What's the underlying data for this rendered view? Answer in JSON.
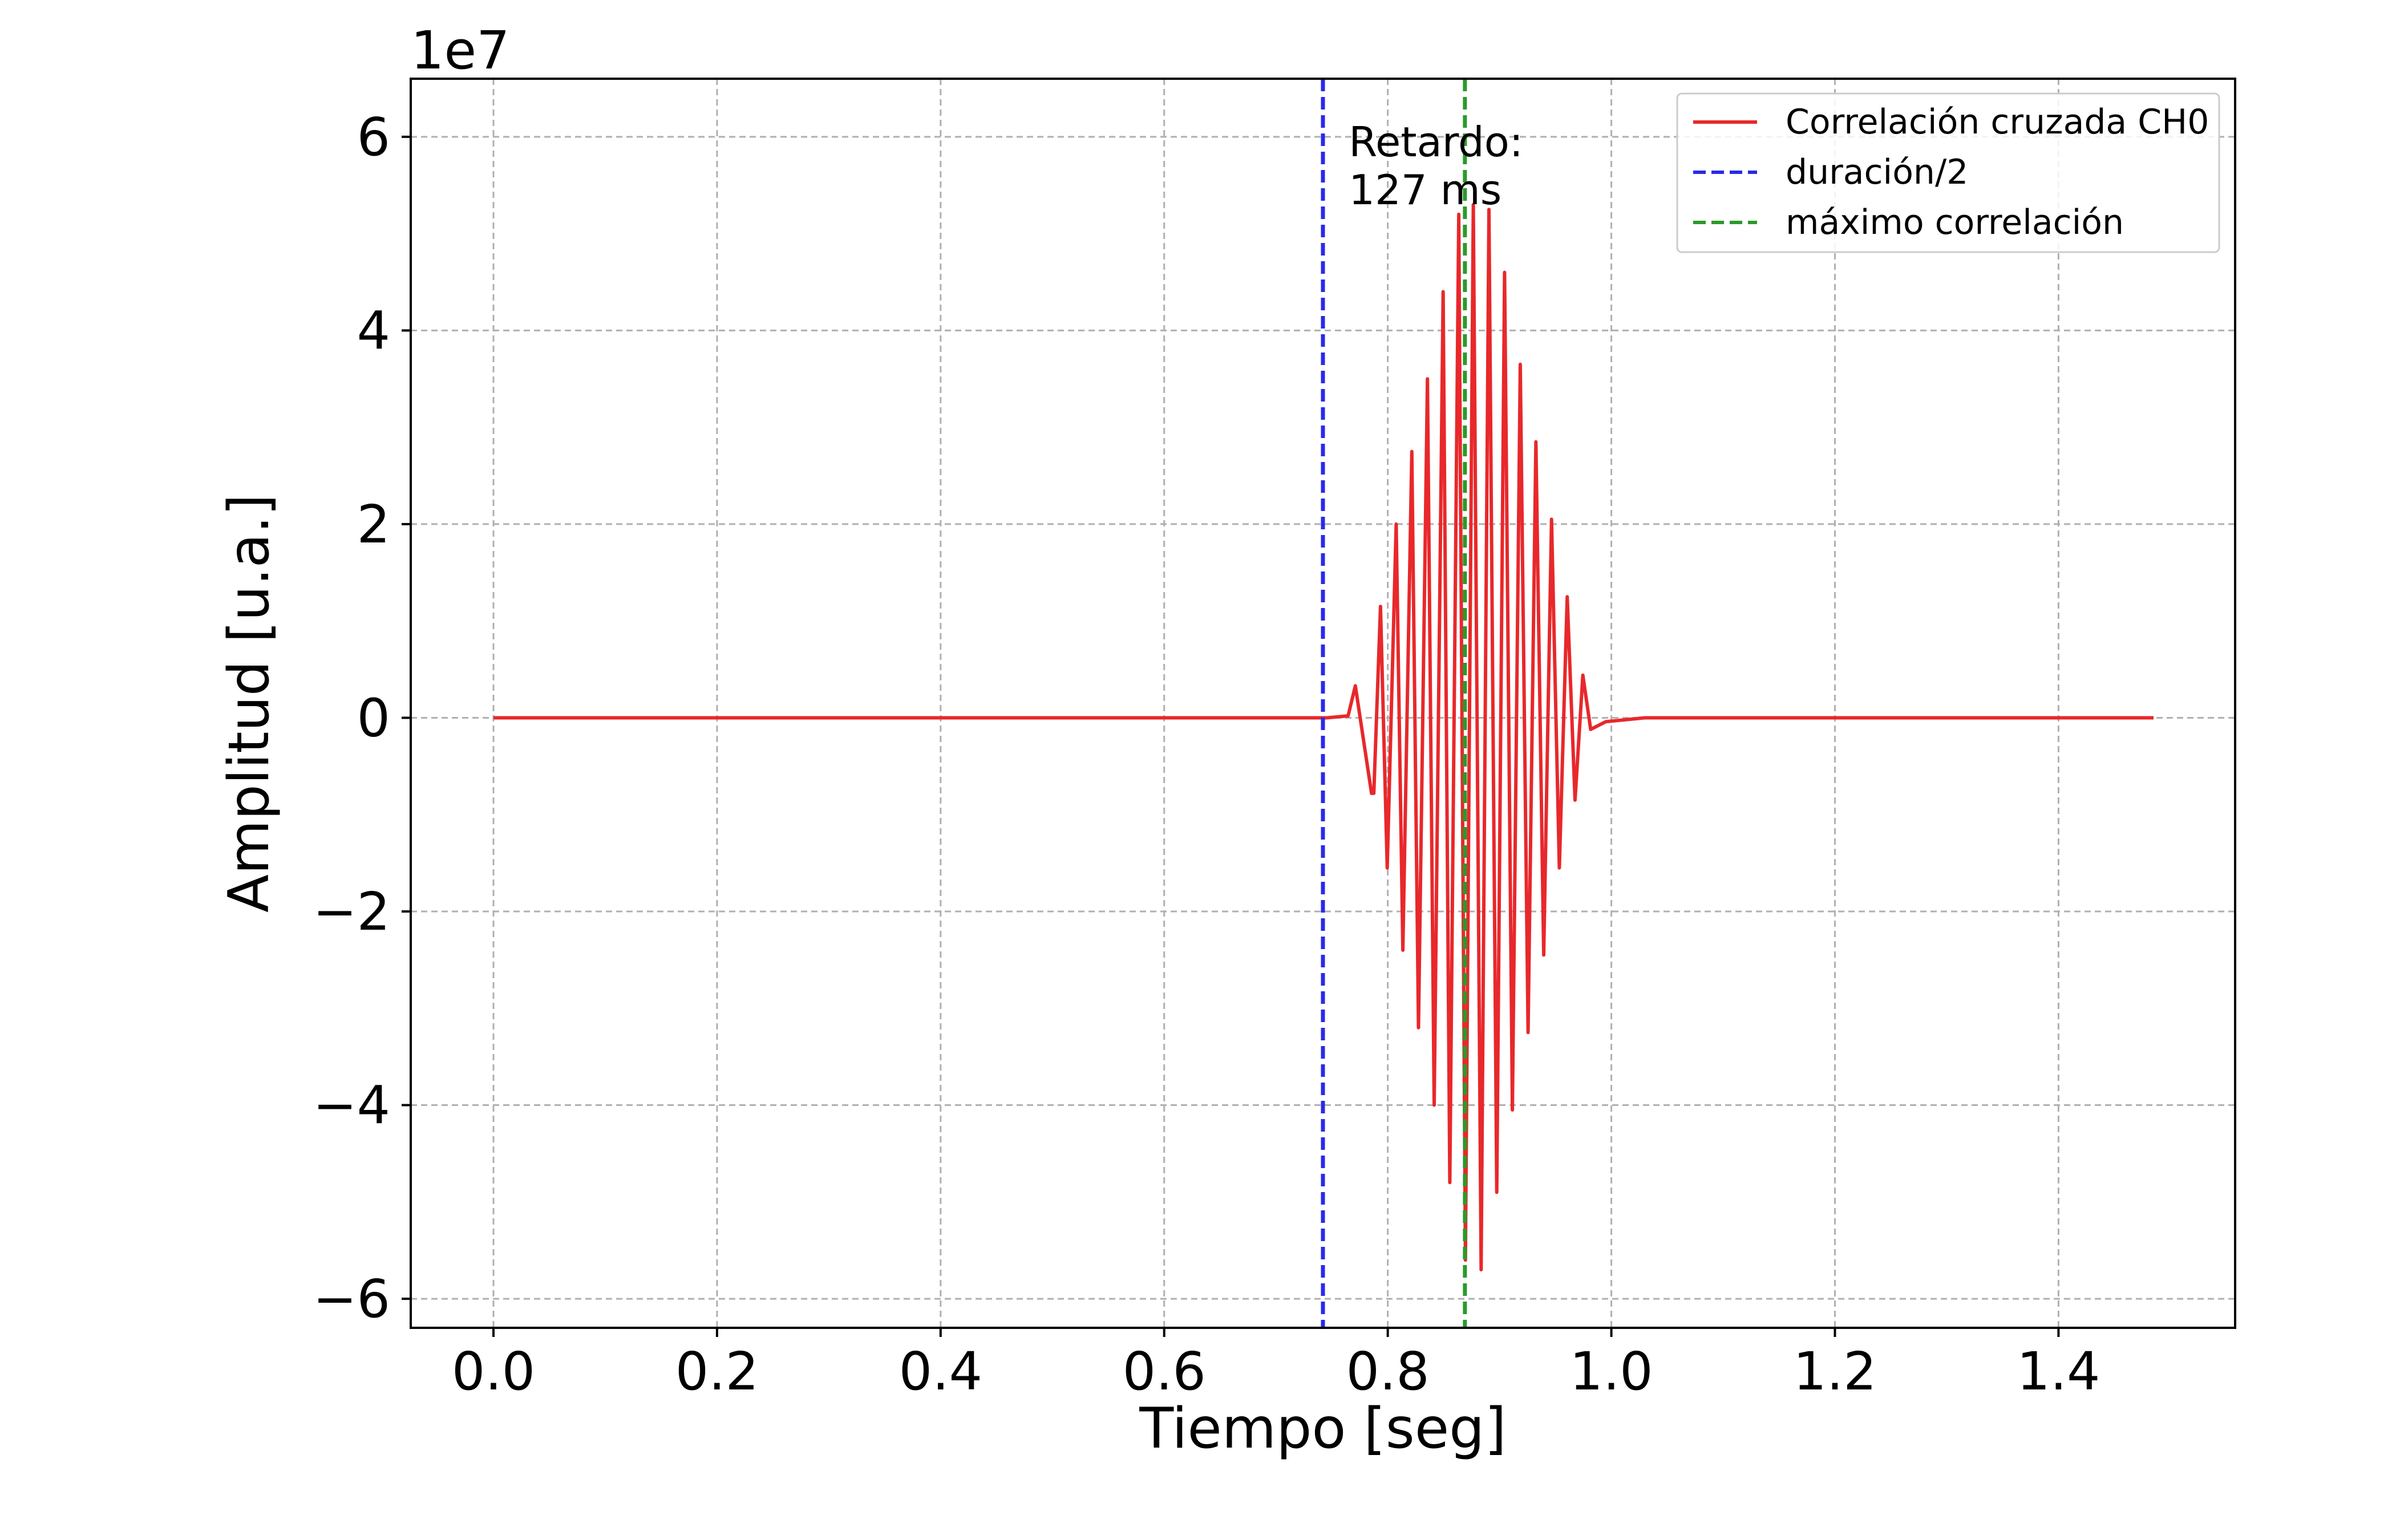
{
  "chart_data": {
    "type": "line",
    "xlabel": "Tiempo [seg]",
    "ylabel": "Amplitud [u.a.]",
    "y_offset_label": "1e7",
    "xlim": [
      -0.074,
      1.558
    ],
    "ylim": [
      -6.3,
      6.6
    ],
    "x_ticks": [
      0.0,
      0.2,
      0.4,
      0.6,
      0.8,
      1.0,
      1.2,
      1.4
    ],
    "x_tick_labels": [
      "0.0",
      "0.2",
      "0.4",
      "0.6",
      "0.8",
      "1.0",
      "1.2",
      "1.4"
    ],
    "y_ticks": [
      -6,
      -4,
      -2,
      0,
      2,
      4,
      6
    ],
    "y_tick_labels": [
      "−6",
      "−4",
      "−2",
      "0",
      "2",
      "4",
      "6"
    ],
    "grid": true,
    "legend_position": "top-right",
    "series": [
      {
        "name": "Correlación cruzada CH0",
        "color": "#e8282b",
        "style": "solid",
        "peaks": [
          {
            "x": 0.0,
            "y": 0.0
          },
          {
            "x": 0.7455,
            "y": 0.0
          },
          {
            "x": 0.7645,
            "y": 0.02
          },
          {
            "x": 0.771,
            "y": 0.33
          },
          {
            "x": 0.7855,
            "y": -0.78
          },
          {
            "x": 0.7855,
            "y": -0.78
          },
          {
            "x": 0.7875,
            "y": -0.78
          },
          {
            "x": 0.7935,
            "y": 1.15
          },
          {
            "x": 0.7995,
            "y": -1.55
          },
          {
            "x": 0.8075,
            "y": 2.0
          },
          {
            "x": 0.8135,
            "y": -2.4
          },
          {
            "x": 0.8215,
            "y": 2.75
          },
          {
            "x": 0.8275,
            "y": -3.2
          },
          {
            "x": 0.8355,
            "y": 3.5
          },
          {
            "x": 0.8415,
            "y": -4.0
          },
          {
            "x": 0.8495,
            "y": 4.4
          },
          {
            "x": 0.8555,
            "y": -4.8
          },
          {
            "x": 0.8635,
            "y": 5.2
          },
          {
            "x": 0.8695,
            "y": -5.6
          },
          {
            "x": 0.8765,
            "y": 5.3
          },
          {
            "x": 0.8835,
            "y": -5.7
          },
          {
            "x": 0.8905,
            "y": 5.25
          },
          {
            "x": 0.8975,
            "y": -4.9
          },
          {
            "x": 0.9045,
            "y": 4.6
          },
          {
            "x": 0.9115,
            "y": -4.05
          },
          {
            "x": 0.9185,
            "y": 3.65
          },
          {
            "x": 0.9255,
            "y": -3.25
          },
          {
            "x": 0.9325,
            "y": 2.85
          },
          {
            "x": 0.9395,
            "y": -2.45
          },
          {
            "x": 0.9465,
            "y": 2.05
          },
          {
            "x": 0.9535,
            "y": -1.55
          },
          {
            "x": 0.9605,
            "y": 1.25
          },
          {
            "x": 0.9675,
            "y": -0.85
          },
          {
            "x": 0.9745,
            "y": 0.44
          },
          {
            "x": 0.9815,
            "y": -0.12
          },
          {
            "x": 0.995,
            "y": -0.04
          },
          {
            "x": 1.03,
            "y": 0.0
          },
          {
            "x": 1.485,
            "y": 0.0
          }
        ]
      },
      {
        "name": "duración/2",
        "color": "#2a2ae8",
        "style": "dashed",
        "vline_x": 0.742
      },
      {
        "name": "máximo correlación",
        "color": "#2a9a2a",
        "style": "dashed",
        "vline_x": 0.869
      }
    ],
    "annotation": {
      "lines": [
        "Retardo:",
        "127 ms"
      ],
      "anchor_x": 0.76,
      "anchor_y": 5.8
    }
  }
}
